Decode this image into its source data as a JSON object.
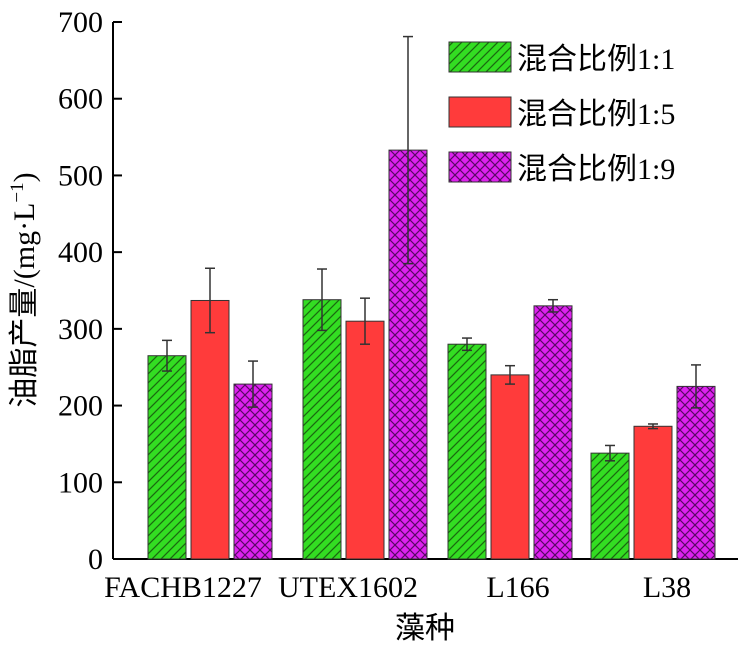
{
  "chart_data": {
    "type": "bar",
    "categories": [
      "FACHB1227",
      "UTEX1602",
      "L166",
      "L38"
    ],
    "series": [
      {
        "name": "混合比例1:1",
        "values": [
          265,
          338,
          280,
          138
        ],
        "errors": [
          20,
          40,
          8,
          10
        ],
        "color": "#33dd22",
        "pattern": "diagonal-hatch"
      },
      {
        "name": "混合比例1:5",
        "values": [
          337,
          310,
          240,
          173
        ],
        "errors": [
          42,
          30,
          12,
          3
        ],
        "color": "#ff3b3b",
        "pattern": "solid"
      },
      {
        "name": "混合比例1:9",
        "values": [
          228,
          533,
          330,
          225
        ],
        "errors": [
          30,
          148,
          8,
          28
        ],
        "color": "#dd22ee",
        "pattern": "crosshatch"
      }
    ],
    "xlabel": "藻种",
    "ylabel": "油脂产量/(mg·L",
    "ylabel_sup": "−1",
    "ylabel_close": ")",
    "ylim": [
      0,
      700
    ],
    "yticks": [
      "0",
      "100",
      "200",
      "300",
      "400",
      "500",
      "600",
      "700"
    ],
    "grid": false,
    "legend_position": "top-right"
  }
}
